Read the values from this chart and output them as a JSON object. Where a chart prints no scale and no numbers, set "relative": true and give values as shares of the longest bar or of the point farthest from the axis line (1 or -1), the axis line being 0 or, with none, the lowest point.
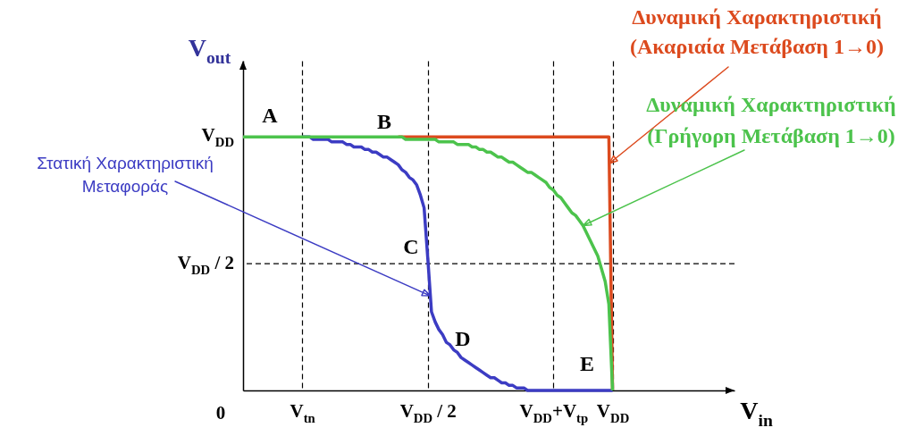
{
  "chart_data": {
    "type": "line",
    "relative": true,
    "xlabel": "V$_{in}$",
    "ylabel": "V$_{out}$",
    "grid": "x",
    "categories": [
      null,
      null,
      null,
      null,
      null,
      null,
      null,
      null,
      null,
      null,
      null,
      null,
      null,
      null,
      null,
      null,
      "V$_{tn}$",
      null,
      null,
      null,
      null,
      null,
      null,
      null,
      null,
      null,
      null,
      null,
      null,
      null,
      null,
      null,
      null,
      null,
      null,
      null,
      null,
      null,
      null,
      null,
      null,
      null,
      null,
      null,
      null,
      null,
      null,
      null,
      null,
      null,
      "V$_{DD}$ / 2",
      null,
      null,
      null,
      null,
      null,
      null,
      null,
      null,
      null,
      null,
      null,
      null,
      null,
      null,
      null,
      null,
      null,
      null,
      null,
      null,
      null,
      null,
      null,
      null,
      null,
      null,
      null,
      null,
      null,
      null,
      null,
      null,
      null,
      "V$_{DD}$+V$_{tp}$",
      null,
      null,
      null,
      null,
      null,
      null,
      null,
      null,
      null,
      null,
      null,
      null,
      null,
      null,
      null,
      "V$_{DD}$",
      null,
      null,
      null,
      null,
      null,
      null,
      null,
      null,
      null,
      null,
      null,
      null,
      null,
      null,
      null,
      null,
      null,
      null,
      null,
      null,
      null,
      null,
      null,
      null,
      null,
      null,
      null,
      null,
      null,
      null,
      null,
      null,
      null
    ],
    "series": [
      {
        "name": "Στατική Χαρακτηριστική Μεταφοράς",
        "color": "#3c3cc3",
        "values": [
          null,
          null,
          null,
          null,
          null,
          null,
          null,
          null,
          null,
          null,
          null,
          null,
          null,
          null,
          null,
          null,
          1,
          1,
          1,
          0.99,
          0.99,
          0.99,
          0.99,
          0.99,
          0.98,
          0.98,
          0.98,
          0.98,
          0.97,
          0.97,
          0.96,
          0.96,
          0.96,
          0.95,
          0.95,
          0.94,
          0.94,
          0.93,
          0.92,
          0.92,
          0.91,
          0.9,
          0.89,
          0.87,
          0.86,
          0.84,
          0.83,
          0.81,
          0.77,
          0.72,
          0.52,
          0.31,
          0.27,
          0.24,
          0.22,
          0.19,
          0.18,
          0.16,
          0.15,
          0.13,
          0.12,
          0.11,
          0.1,
          0.09,
          0.08,
          0.07,
          0.06,
          0.05,
          0.05,
          0.04,
          0.03,
          0.03,
          0.02,
          0.02,
          0.01,
          0.01,
          0.01,
          0,
          0,
          0,
          0,
          0,
          0,
          0,
          0,
          0,
          0,
          0,
          0,
          0,
          0,
          0,
          0,
          0,
          0,
          0,
          0,
          0,
          0,
          0,
          0,
          null,
          null,
          null,
          null,
          null,
          null,
          null,
          null,
          null,
          null,
          null,
          null,
          null,
          null,
          null,
          null,
          null,
          null,
          null,
          null,
          null,
          null,
          null,
          null,
          null,
          null,
          null,
          null,
          null,
          null,
          null,
          null,
          null
        ]
      },
      {
        "name": "Δυναμική Χαρακτηριστική (Ακαριαία Μετάβαση 1→0)",
        "color": "#dc4a1e",
        "values": [
          null,
          null,
          null,
          null,
          null,
          null,
          null,
          null,
          null,
          null,
          null,
          null,
          null,
          null,
          null,
          null,
          null,
          null,
          null,
          null,
          null,
          null,
          null,
          null,
          null,
          null,
          null,
          null,
          null,
          null,
          null,
          null,
          null,
          null,
          null,
          null,
          null,
          null,
          null,
          null,
          null,
          null,
          1,
          1,
          1,
          1,
          1,
          1,
          1,
          1,
          1,
          1,
          1,
          1,
          1,
          1,
          1,
          1,
          1,
          1,
          1,
          1,
          1,
          1,
          1,
          1,
          1,
          1,
          1,
          1,
          1,
          1,
          1,
          1,
          1,
          1,
          1,
          1,
          1,
          1,
          1,
          1,
          1,
          1,
          1,
          1,
          1,
          1,
          1,
          1,
          1,
          1,
          1,
          1,
          1,
          1,
          1,
          1,
          1,
          1,
          0,
          null,
          null,
          null,
          null,
          null,
          null,
          null,
          null,
          null,
          null,
          null,
          null,
          null,
          null,
          null,
          null,
          null,
          null,
          null,
          null,
          null,
          null,
          null,
          null,
          null,
          null,
          null,
          null,
          null,
          null,
          null,
          null,
          null
        ]
      },
      {
        "name": "Δυναμική Χαρακτηριστική (Γρήγορη Μετάβαση 1→0)",
        "color": "#4cc34c",
        "values": [
          1,
          1,
          1,
          1,
          1,
          1,
          1,
          1,
          1,
          1,
          1,
          1,
          1,
          1,
          1,
          1,
          1,
          1,
          1,
          1,
          1,
          1,
          1,
          1,
          1,
          1,
          1,
          1,
          1,
          1,
          1,
          1,
          1,
          1,
          1,
          1,
          1,
          1,
          1,
          1,
          1,
          1,
          1,
          1,
          0.99,
          0.99,
          0.99,
          0.99,
          0.99,
          0.99,
          0.99,
          0.99,
          0.99,
          0.98,
          0.98,
          0.98,
          0.98,
          0.98,
          0.97,
          0.97,
          0.97,
          0.97,
          0.96,
          0.96,
          0.95,
          0.95,
          0.94,
          0.94,
          0.93,
          0.92,
          0.92,
          0.91,
          0.9,
          0.9,
          0.89,
          0.88,
          0.87,
          0.86,
          0.86,
          0.85,
          0.84,
          0.83,
          0.82,
          0.8,
          0.79,
          0.77,
          0.76,
          0.74,
          0.72,
          0.7,
          0.69,
          0.67,
          0.65,
          0.62,
          0.59,
          0.56,
          0.53,
          0.48,
          0.43,
          0.34,
          0,
          null,
          null,
          null,
          null,
          null,
          null,
          null,
          null,
          null,
          null,
          null,
          null,
          null,
          null,
          null,
          null,
          null,
          null,
          null,
          null,
          null,
          null,
          null,
          null,
          null,
          null,
          null,
          null,
          null,
          null,
          null,
          null,
          null
        ]
      }
    ],
    "ref_lines": [
      {
        "axis": "y",
        "value": 0.5,
        "label": "V$_{DD}$ / 2",
        "color": "#000000",
        "line_style": "dashed"
      }
    ],
    "annotations": [
      "A",
      "B",
      "C",
      "D",
      "E",
      "V$_{DD}$",
      "0"
    ]
  }
}
